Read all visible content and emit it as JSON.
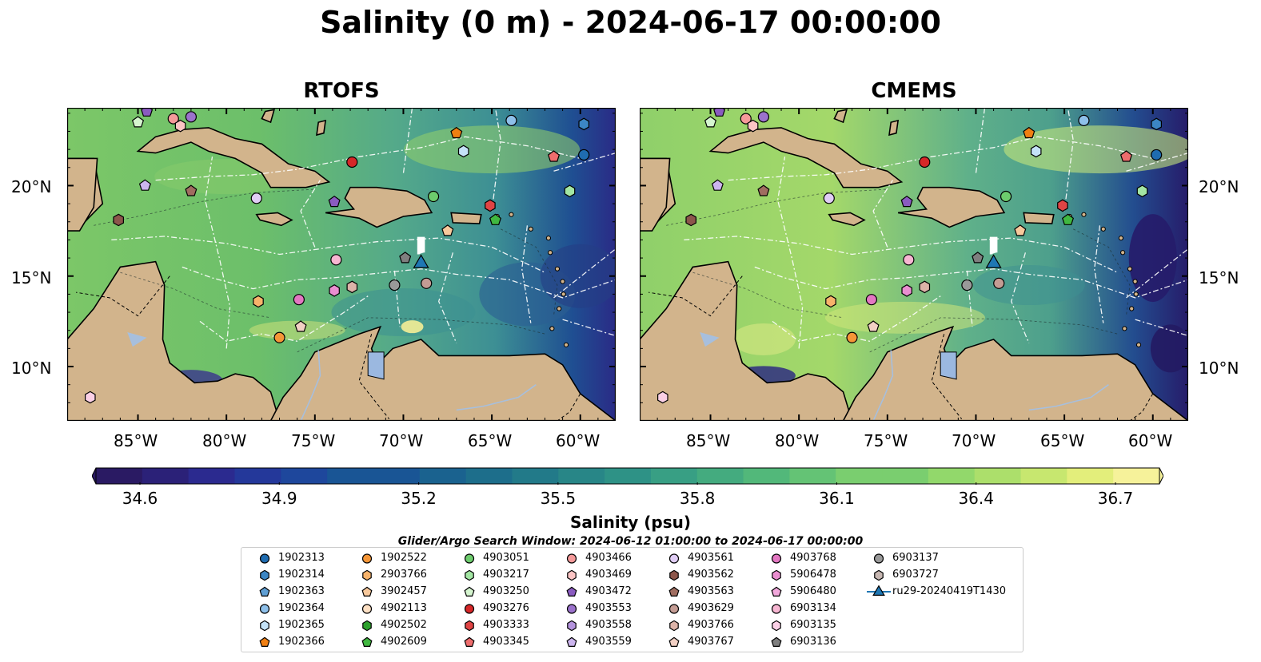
{
  "title": "Salinity (0 m) - 2024-06-17 00:00:00",
  "panels": [
    {
      "title": "RTOFS"
    },
    {
      "title": "CMEMS"
    }
  ],
  "axes": {
    "lat_ticks": [
      "20°N",
      "15°N",
      "10°N"
    ],
    "lon_ticks": [
      "85°W",
      "80°W",
      "75°W",
      "70°W",
      "65°W",
      "60°W"
    ],
    "extent": {
      "lon": [
        -89,
        -58
      ],
      "lat": [
        7,
        24.3
      ]
    }
  },
  "colorbar": {
    "label": "Salinity (psu)",
    "ticks": [
      "34.6",
      "34.9",
      "35.2",
      "35.5",
      "35.8",
      "36.1",
      "36.4",
      "36.7"
    ],
    "range": [
      34.6,
      36.7
    ],
    "colormap": "haline",
    "extend": "both"
  },
  "colors": {
    "land": "#d2b48c",
    "lake": "#9bb8e0",
    "river": "#a7bfdd",
    "ocean_low": "#2a1a63",
    "ocean_mid": "#3d9c8b",
    "ocean_high": "#fbf19a"
  },
  "search_window": "Glider/Argo Search Window: 2024-06-12 01:00:00 to 2024-06-17 00:00:00",
  "legend": [
    {
      "label": "1902313",
      "color": "#1f6cb0",
      "marker": "circle"
    },
    {
      "label": "1902314",
      "color": "#3c86c4",
      "marker": "hexagon"
    },
    {
      "label": "1902363",
      "color": "#5f9fd4",
      "marker": "pentagon"
    },
    {
      "label": "1902364",
      "color": "#8ec0ea",
      "marker": "circle"
    },
    {
      "label": "1902365",
      "color": "#c4e2f7",
      "marker": "hexagon"
    },
    {
      "label": "1902366",
      "color": "#f07f12",
      "marker": "pentagon"
    },
    {
      "label": "1902522",
      "color": "#f59637",
      "marker": "circle"
    },
    {
      "label": "2903766",
      "color": "#f7b36b",
      "marker": "hexagon"
    },
    {
      "label": "3902457",
      "color": "#f8c99c",
      "marker": "pentagon"
    },
    {
      "label": "4902113",
      "color": "#fde0c4",
      "marker": "circle"
    },
    {
      "label": "4902502",
      "color": "#2ca02c",
      "marker": "hexagon"
    },
    {
      "label": "4902609",
      "color": "#40b840",
      "marker": "pentagon"
    },
    {
      "label": "4903051",
      "color": "#6dcc6d",
      "marker": "circle"
    },
    {
      "label": "4903217",
      "color": "#a3e6a3",
      "marker": "hexagon"
    },
    {
      "label": "4903250",
      "color": "#d5f5cf",
      "marker": "pentagon"
    },
    {
      "label": "4903276",
      "color": "#d62728",
      "marker": "circle"
    },
    {
      "label": "4903333",
      "color": "#e04444",
      "marker": "hexagon"
    },
    {
      "label": "4903345",
      "color": "#ee6d6d",
      "marker": "pentagon"
    },
    {
      "label": "4903466",
      "color": "#f59a9a",
      "marker": "circle"
    },
    {
      "label": "4903469",
      "color": "#fbc4c4",
      "marker": "hexagon"
    },
    {
      "label": "4903472",
      "color": "#8a5bc0",
      "marker": "pentagon"
    },
    {
      "label": "4903553",
      "color": "#9b72cc",
      "marker": "circle"
    },
    {
      "label": "4903558",
      "color": "#b493dd",
      "marker": "hexagon"
    },
    {
      "label": "4903559",
      "color": "#ccb5ee",
      "marker": "pentagon"
    },
    {
      "label": "4903561",
      "color": "#e0cdf5",
      "marker": "circle"
    },
    {
      "label": "4903562",
      "color": "#8c564b",
      "marker": "hexagon"
    },
    {
      "label": "4903563",
      "color": "#a06d60",
      "marker": "pentagon"
    },
    {
      "label": "4903629",
      "color": "#c49c94",
      "marker": "circle"
    },
    {
      "label": "4903766",
      "color": "#dcb3a8",
      "marker": "hexagon"
    },
    {
      "label": "4903767",
      "color": "#f2d0c4",
      "marker": "pentagon"
    },
    {
      "label": "4903768",
      "color": "#e377c2",
      "marker": "circle"
    },
    {
      "label": "5906478",
      "color": "#ea8ed0",
      "marker": "hexagon"
    },
    {
      "label": "5906480",
      "color": "#f2a8dc",
      "marker": "pentagon"
    },
    {
      "label": "6903134",
      "color": "#f7b6d2",
      "marker": "circle"
    },
    {
      "label": "6903135",
      "color": "#fbd0e6",
      "marker": "hexagon"
    },
    {
      "label": "6903136",
      "color": "#7f7f7f",
      "marker": "pentagon"
    },
    {
      "label": "6903137",
      "color": "#999999",
      "marker": "circle"
    },
    {
      "label": "6903727",
      "color": "#c7b7b2",
      "marker": "hexagon"
    },
    {
      "label": "ru29-20240419T1430",
      "color": "#1f77b4",
      "marker": "triangle"
    }
  ],
  "markers": [
    {
      "lon": -84.5,
      "lat": 24.1,
      "color": "#8a5bc0",
      "marker": "pentagon"
    },
    {
      "lon": -85.0,
      "lat": 23.5,
      "color": "#d5f5cf",
      "marker": "pentagon"
    },
    {
      "lon": -83.0,
      "lat": 23.7,
      "color": "#f59a9a",
      "marker": "circle"
    },
    {
      "lon": -82.0,
      "lat": 23.8,
      "color": "#9b72cc",
      "marker": "circle"
    },
    {
      "lon": -82.6,
      "lat": 23.3,
      "color": "#fbc4c4",
      "marker": "hexagon"
    },
    {
      "lon": -84.6,
      "lat": 20.0,
      "color": "#ccb5ee",
      "marker": "pentagon"
    },
    {
      "lon": -82.0,
      "lat": 19.7,
      "color": "#a06d60",
      "marker": "pentagon"
    },
    {
      "lon": -78.3,
      "lat": 19.3,
      "color": "#e0cdf5",
      "marker": "circle"
    },
    {
      "lon": -86.1,
      "lat": 18.1,
      "color": "#8c564b",
      "marker": "hexagon"
    },
    {
      "lon": -72.9,
      "lat": 21.3,
      "color": "#d62728",
      "marker": "circle"
    },
    {
      "lon": -73.9,
      "lat": 19.1,
      "color": "#8a5bc0",
      "marker": "pentagon"
    },
    {
      "lon": -68.3,
      "lat": 19.4,
      "color": "#6dcc6d",
      "marker": "circle"
    },
    {
      "lon": -67.0,
      "lat": 22.9,
      "color": "#f07f12",
      "marker": "pentagon"
    },
    {
      "lon": -66.6,
      "lat": 21.9,
      "color": "#c4e2f7",
      "marker": "hexagon"
    },
    {
      "lon": -63.9,
      "lat": 23.6,
      "color": "#8ec0ea",
      "marker": "circle"
    },
    {
      "lon": -59.8,
      "lat": 23.4,
      "color": "#3c86c4",
      "marker": "hexagon"
    },
    {
      "lon": -59.8,
      "lat": 21.7,
      "color": "#1f6cb0",
      "marker": "circle"
    },
    {
      "lon": -61.5,
      "lat": 21.6,
      "color": "#ee6d6d",
      "marker": "pentagon"
    },
    {
      "lon": -60.6,
      "lat": 19.7,
      "color": "#a3e6a3",
      "marker": "hexagon"
    },
    {
      "lon": -65.1,
      "lat": 18.9,
      "color": "#e04444",
      "marker": "hexagon"
    },
    {
      "lon": -64.8,
      "lat": 18.1,
      "color": "#40b840",
      "marker": "pentagon"
    },
    {
      "lon": -67.5,
      "lat": 17.5,
      "color": "#f8c99c",
      "marker": "pentagon"
    },
    {
      "lon": -73.8,
      "lat": 15.9,
      "color": "#f7b6d2",
      "marker": "circle"
    },
    {
      "lon": -69.9,
      "lat": 16.0,
      "color": "#7f7f7f",
      "marker": "pentagon"
    },
    {
      "lon": -69.0,
      "lat": 15.7,
      "color": "#1f77b4",
      "marker": "triangle"
    },
    {
      "lon": -70.5,
      "lat": 14.5,
      "color": "#999999",
      "marker": "circle"
    },
    {
      "lon": -68.7,
      "lat": 14.6,
      "color": "#c49c94",
      "marker": "circle"
    },
    {
      "lon": -72.9,
      "lat": 14.4,
      "color": "#dcb3a8",
      "marker": "hexagon"
    },
    {
      "lon": -73.9,
      "lat": 14.2,
      "color": "#ea8ed0",
      "marker": "hexagon"
    },
    {
      "lon": -75.9,
      "lat": 13.7,
      "color": "#e377c2",
      "marker": "circle"
    },
    {
      "lon": -78.2,
      "lat": 13.6,
      "color": "#f7b36b",
      "marker": "hexagon"
    },
    {
      "lon": -75.8,
      "lat": 12.2,
      "color": "#f2d0c4",
      "marker": "pentagon"
    },
    {
      "lon": -77.0,
      "lat": 11.6,
      "color": "#f59637",
      "marker": "circle"
    },
    {
      "lon": -87.7,
      "lat": 8.3,
      "color": "#fbd0e6",
      "marker": "hexagon"
    }
  ]
}
